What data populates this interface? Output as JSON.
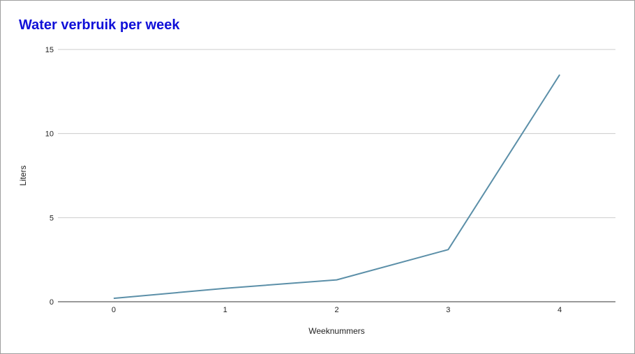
{
  "chart_data": {
    "type": "line",
    "title": "Water verbruik per week",
    "xlabel": "Weeknummers",
    "ylabel": "Liters",
    "x": [
      0,
      1,
      2,
      3,
      4
    ],
    "series": [
      {
        "values": [
          0.2,
          0.8,
          1.3,
          3.1,
          13.5
        ]
      }
    ],
    "xlim": [
      -0.5,
      4.5
    ],
    "ylim": [
      0,
      15
    ],
    "yticks": [
      0,
      5,
      10,
      15
    ],
    "xticks": [
      0,
      1,
      2,
      3,
      4
    ],
    "grid": true,
    "legend": "none",
    "colors": {
      "title": "#1010d8",
      "series": "#5b8fa8",
      "grid": "#cccccc",
      "axis": "#333333"
    }
  }
}
